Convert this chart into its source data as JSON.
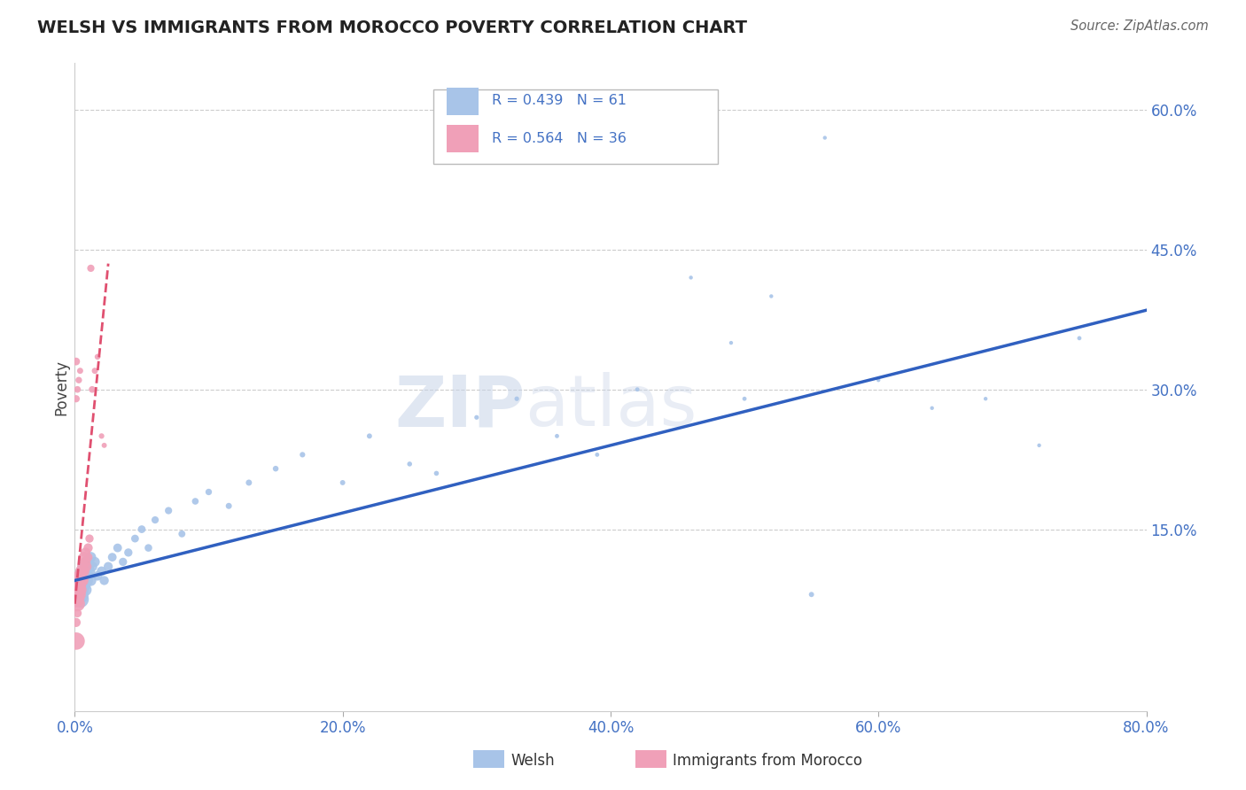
{
  "title": "WELSH VS IMMIGRANTS FROM MOROCCO POVERTY CORRELATION CHART",
  "source": "Source: ZipAtlas.com",
  "ylabel": "Poverty",
  "xmin": 0.0,
  "xmax": 0.8,
  "ymin": -0.045,
  "ymax": 0.65,
  "welsh_R": 0.439,
  "welsh_N": 61,
  "morocco_R": 0.564,
  "morocco_N": 36,
  "welsh_color": "#A8C4E8",
  "morocco_color": "#F0A0B8",
  "welsh_line_color": "#3060C0",
  "morocco_line_color": "#E05070",
  "background_color": "#ffffff",
  "grid_color": "#cccccc",
  "watermark_zip": "ZIP",
  "watermark_atlas": "atlas",
  "xtick_labels": [
    "0.0%",
    "20.0%",
    "40.0%",
    "60.0%",
    "80.0%"
  ],
  "xtick_vals": [
    0.0,
    0.2,
    0.4,
    0.6,
    0.8
  ],
  "ytick_vals": [
    0.15,
    0.3,
    0.45,
    0.6
  ],
  "ytick_labels": [
    "15.0%",
    "30.0%",
    "45.0%",
    "60.0%"
  ],
  "welsh_x": [
    0.002,
    0.003,
    0.004,
    0.004,
    0.005,
    0.005,
    0.006,
    0.006,
    0.007,
    0.007,
    0.008,
    0.008,
    0.009,
    0.009,
    0.01,
    0.01,
    0.011,
    0.012,
    0.012,
    0.013,
    0.015,
    0.017,
    0.02,
    0.022,
    0.025,
    0.028,
    0.032,
    0.036,
    0.04,
    0.045,
    0.05,
    0.055,
    0.06,
    0.07,
    0.08,
    0.09,
    0.1,
    0.115,
    0.13,
    0.15,
    0.17,
    0.2,
    0.22,
    0.25,
    0.27,
    0.3,
    0.33,
    0.36,
    0.39,
    0.42,
    0.46,
    0.49,
    0.52,
    0.56,
    0.6,
    0.64,
    0.68,
    0.72,
    0.5,
    0.55,
    0.75
  ],
  "welsh_y": [
    0.09,
    0.08,
    0.095,
    0.075,
    0.1,
    0.085,
    0.095,
    0.105,
    0.09,
    0.11,
    0.085,
    0.1,
    0.095,
    0.115,
    0.1,
    0.11,
    0.105,
    0.095,
    0.12,
    0.11,
    0.115,
    0.1,
    0.105,
    0.095,
    0.11,
    0.12,
    0.13,
    0.115,
    0.125,
    0.14,
    0.15,
    0.13,
    0.16,
    0.17,
    0.145,
    0.18,
    0.19,
    0.175,
    0.2,
    0.215,
    0.23,
    0.2,
    0.25,
    0.22,
    0.21,
    0.27,
    0.29,
    0.25,
    0.23,
    0.3,
    0.42,
    0.35,
    0.4,
    0.57,
    0.31,
    0.28,
    0.29,
    0.24,
    0.29,
    0.08,
    0.355
  ],
  "welsh_sizes": [
    300,
    250,
    180,
    200,
    150,
    140,
    120,
    130,
    110,
    120,
    100,
    110,
    100,
    90,
    85,
    90,
    80,
    80,
    75,
    70,
    65,
    60,
    60,
    55,
    55,
    50,
    50,
    45,
    45,
    40,
    40,
    38,
    35,
    35,
    32,
    30,
    28,
    25,
    25,
    22,
    20,
    18,
    18,
    16,
    16,
    14,
    14,
    12,
    12,
    12,
    10,
    10,
    10,
    10,
    10,
    10,
    10,
    10,
    12,
    18,
    12
  ],
  "morocco_x": [
    0.001,
    0.001,
    0.002,
    0.002,
    0.003,
    0.003,
    0.004,
    0.004,
    0.005,
    0.005,
    0.006,
    0.006,
    0.007,
    0.007,
    0.008,
    0.008,
    0.009,
    0.01,
    0.01,
    0.011,
    0.012,
    0.013,
    0.015,
    0.017,
    0.02,
    0.022,
    0.002,
    0.003,
    0.004,
    0.001,
    0.001,
    0.002,
    0.003,
    0.001,
    0.002,
    0.001
  ],
  "morocco_y": [
    0.095,
    0.075,
    0.085,
    0.07,
    0.09,
    0.08,
    0.1,
    0.085,
    0.095,
    0.105,
    0.11,
    0.095,
    0.105,
    0.12,
    0.115,
    0.125,
    0.11,
    0.13,
    0.12,
    0.14,
    0.43,
    0.3,
    0.32,
    0.335,
    0.25,
    0.24,
    0.3,
    0.31,
    0.32,
    0.33,
    0.29,
    0.1,
    0.08,
    0.05,
    0.06,
    0.03
  ],
  "morocco_sizes": [
    200,
    180,
    160,
    150,
    140,
    130,
    100,
    110,
    90,
    100,
    80,
    85,
    75,
    80,
    70,
    65,
    60,
    55,
    50,
    45,
    35,
    30,
    25,
    22,
    20,
    18,
    30,
    28,
    25,
    40,
    35,
    50,
    45,
    55,
    48,
    200
  ],
  "welsh_line_x": [
    0.0,
    0.8
  ],
  "welsh_line_y": [
    0.095,
    0.385
  ],
  "morocco_line_x": [
    0.0,
    0.025
  ],
  "morocco_line_y": [
    0.07,
    0.435
  ]
}
